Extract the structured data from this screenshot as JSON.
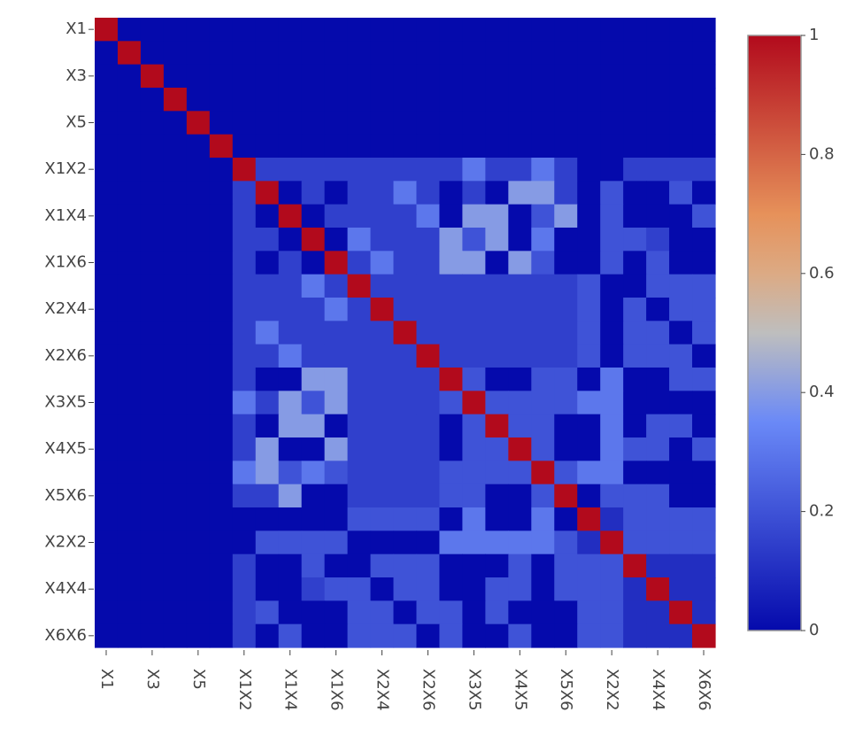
{
  "chart_data": {
    "type": "heatmap",
    "categories": [
      "X1",
      null,
      "X3",
      null,
      "X5",
      null,
      "X1X2",
      null,
      "X1X4",
      null,
      "X1X6",
      null,
      "X2X4",
      null,
      "X2X6",
      null,
      "X3X5",
      null,
      "X4X5",
      null,
      "X5X6",
      null,
      "X2X2",
      null,
      "X4X4",
      null,
      "X6X6"
    ],
    "z": [
      [
        1,
        0,
        0,
        0,
        0,
        0,
        0,
        0,
        0,
        0,
        0,
        0,
        0,
        0,
        0,
        0,
        0,
        0,
        0,
        0,
        0,
        0,
        0,
        0,
        0,
        0,
        0
      ],
      [
        0,
        1,
        0,
        0,
        0,
        0,
        0,
        0,
        0,
        0,
        0,
        0,
        0,
        0,
        0,
        0,
        0,
        0,
        0,
        0,
        0,
        0,
        0,
        0,
        0,
        0,
        0
      ],
      [
        0,
        0,
        1,
        0,
        0,
        0,
        0,
        0,
        0,
        0,
        0,
        0,
        0,
        0,
        0,
        0,
        0,
        0,
        0,
        0,
        0,
        0,
        0,
        0,
        0,
        0,
        0
      ],
      [
        0,
        0,
        0,
        1,
        0,
        0,
        0,
        0,
        0,
        0,
        0,
        0,
        0,
        0,
        0,
        0,
        0,
        0,
        0,
        0,
        0,
        0,
        0,
        0,
        0,
        0,
        0
      ],
      [
        0,
        0,
        0,
        0,
        1,
        0,
        0,
        0,
        0,
        0,
        0,
        0,
        0,
        0,
        0,
        0,
        0,
        0,
        0,
        0,
        0,
        0,
        0,
        0,
        0,
        0,
        0
      ],
      [
        0,
        0,
        0,
        0,
        0,
        1,
        0,
        0,
        0,
        0,
        0,
        0,
        0,
        0,
        0,
        0,
        0,
        0,
        0,
        0,
        0,
        0,
        0,
        0,
        0,
        0,
        0
      ],
      [
        0,
        0,
        0,
        0,
        0,
        0,
        1,
        0.15,
        0.15,
        0.15,
        0.15,
        0.15,
        0.15,
        0.15,
        0.15,
        0.15,
        0.3,
        0.15,
        0.15,
        0.3,
        0.15,
        0,
        0,
        0.15,
        0.15,
        0.15,
        0.15
      ],
      [
        0,
        0,
        0,
        0,
        0,
        0,
        0.15,
        1,
        0,
        0.15,
        0,
        0.15,
        0.15,
        0.3,
        0.15,
        0,
        0.15,
        0,
        0.4,
        0.4,
        0.15,
        0,
        0.2,
        0,
        0,
        0.2,
        0
      ],
      [
        0,
        0,
        0,
        0,
        0,
        0,
        0.15,
        0,
        1,
        0,
        0.15,
        0.15,
        0.15,
        0.15,
        0.3,
        0,
        0.4,
        0.4,
        0,
        0.2,
        0.4,
        0,
        0.2,
        0,
        0,
        0,
        0.2
      ],
      [
        0,
        0,
        0,
        0,
        0,
        0,
        0.15,
        0.15,
        0,
        1,
        0,
        0.3,
        0.15,
        0.15,
        0.15,
        0.4,
        0.2,
        0.4,
        0,
        0.3,
        0,
        0,
        0.2,
        0.2,
        0.15,
        0,
        0
      ],
      [
        0,
        0,
        0,
        0,
        0,
        0,
        0.15,
        0,
        0.15,
        0,
        1,
        0.15,
        0.3,
        0.15,
        0.15,
        0.4,
        0.4,
        0,
        0.4,
        0.2,
        0,
        0,
        0.2,
        0,
        0.2,
        0,
        0
      ],
      [
        0,
        0,
        0,
        0,
        0,
        0,
        0.15,
        0.15,
        0.15,
        0.3,
        0.15,
        1,
        0.15,
        0.15,
        0.15,
        0.15,
        0.15,
        0.15,
        0.15,
        0.15,
        0.15,
        0.2,
        0,
        0,
        0.2,
        0.2,
        0.2
      ],
      [
        0,
        0,
        0,
        0,
        0,
        0,
        0.15,
        0.15,
        0.15,
        0.15,
        0.3,
        0.15,
        1,
        0.15,
        0.15,
        0.15,
        0.15,
        0.15,
        0.15,
        0.15,
        0.15,
        0.2,
        0,
        0.2,
        0,
        0.2,
        0.2
      ],
      [
        0,
        0,
        0,
        0,
        0,
        0,
        0.15,
        0.3,
        0.15,
        0.15,
        0.15,
        0.15,
        0.15,
        1,
        0.15,
        0.15,
        0.15,
        0.15,
        0.15,
        0.15,
        0.15,
        0.2,
        0,
        0.2,
        0.2,
        0,
        0.2
      ],
      [
        0,
        0,
        0,
        0,
        0,
        0,
        0.15,
        0.15,
        0.3,
        0.15,
        0.15,
        0.15,
        0.15,
        0.15,
        1,
        0.15,
        0.15,
        0.15,
        0.15,
        0.15,
        0.15,
        0.2,
        0,
        0.2,
        0.2,
        0.2,
        0
      ],
      [
        0,
        0,
        0,
        0,
        0,
        0,
        0.15,
        0,
        0,
        0.4,
        0.4,
        0.15,
        0.15,
        0.15,
        0.15,
        1,
        0.2,
        0,
        0,
        0.2,
        0.2,
        0,
        0.3,
        0,
        0,
        0.2,
        0.2
      ],
      [
        0,
        0,
        0,
        0,
        0,
        0,
        0.3,
        0.15,
        0.4,
        0.2,
        0.4,
        0.15,
        0.15,
        0.15,
        0.15,
        0.2,
        1,
        0.2,
        0.2,
        0.2,
        0.2,
        0.3,
        0.3,
        0,
        0,
        0,
        0
      ],
      [
        0,
        0,
        0,
        0,
        0,
        0,
        0.15,
        0,
        0.4,
        0.4,
        0,
        0.15,
        0.15,
        0.15,
        0.15,
        0,
        0.2,
        1,
        0.2,
        0.2,
        0,
        0,
        0.3,
        0,
        0.2,
        0.2,
        0
      ],
      [
        0,
        0,
        0,
        0,
        0,
        0,
        0.15,
        0.4,
        0,
        0,
        0.4,
        0.15,
        0.15,
        0.15,
        0.15,
        0,
        0.2,
        0.2,
        1,
        0.2,
        0,
        0,
        0.3,
        0.2,
        0.2,
        0,
        0.2
      ],
      [
        0,
        0,
        0,
        0,
        0,
        0,
        0.3,
        0.4,
        0.2,
        0.3,
        0.2,
        0.15,
        0.15,
        0.15,
        0.15,
        0.2,
        0.2,
        0.2,
        0.2,
        1,
        0.2,
        0.3,
        0.3,
        0,
        0,
        0,
        0
      ],
      [
        0,
        0,
        0,
        0,
        0,
        0,
        0.15,
        0.15,
        0.4,
        0,
        0,
        0.15,
        0.15,
        0.15,
        0.15,
        0.2,
        0.2,
        0,
        0,
        0.2,
        1,
        0,
        0.2,
        0.2,
        0.2,
        0,
        0
      ],
      [
        0,
        0,
        0,
        0,
        0,
        0,
        0,
        0,
        0,
        0,
        0,
        0.2,
        0.2,
        0.2,
        0.2,
        0,
        0.3,
        0,
        0,
        0.3,
        0,
        1,
        0.1,
        0.2,
        0.2,
        0.2,
        0.2
      ],
      [
        0,
        0,
        0,
        0,
        0,
        0,
        0,
        0.2,
        0.2,
        0.2,
        0.2,
        0,
        0,
        0,
        0,
        0.3,
        0.3,
        0.3,
        0.3,
        0.3,
        0.2,
        0.1,
        1,
        0.2,
        0.2,
        0.2,
        0.2
      ],
      [
        0,
        0,
        0,
        0,
        0,
        0,
        0.15,
        0,
        0,
        0.2,
        0,
        0,
        0.2,
        0.2,
        0.2,
        0,
        0,
        0,
        0.2,
        0,
        0.2,
        0.2,
        0.2,
        1,
        0.1,
        0.1,
        0.1
      ],
      [
        0,
        0,
        0,
        0,
        0,
        0,
        0.15,
        0,
        0,
        0.15,
        0.2,
        0.2,
        0,
        0.2,
        0.2,
        0,
        0,
        0.2,
        0.2,
        0,
        0.2,
        0.2,
        0.2,
        0.1,
        1,
        0.1,
        0.1
      ],
      [
        0,
        0,
        0,
        0,
        0,
        0,
        0.15,
        0.2,
        0,
        0,
        0,
        0.2,
        0.2,
        0,
        0.2,
        0.2,
        0,
        0.2,
        0,
        0,
        0,
        0.2,
        0.2,
        0.1,
        0.1,
        1,
        0.1
      ],
      [
        0,
        0,
        0,
        0,
        0,
        0,
        0.15,
        0,
        0.2,
        0,
        0,
        0.2,
        0.2,
        0.2,
        0,
        0.2,
        0,
        0,
        0.2,
        0,
        0,
        0.2,
        0.2,
        0.1,
        0.1,
        0.1,
        1
      ]
    ],
    "zlim": [
      0,
      1
    ],
    "zticks": [
      0,
      0.2,
      0.4,
      0.6,
      0.8,
      1
    ],
    "colorscale": [
      [
        0,
        "#050aac"
      ],
      [
        0.35,
        "#6a89f7"
      ],
      [
        0.5,
        "#bebebe"
      ],
      [
        0.6,
        "#dcaa84"
      ],
      [
        0.7,
        "#e6915a"
      ],
      [
        1,
        "#b20a1c"
      ]
    ]
  }
}
